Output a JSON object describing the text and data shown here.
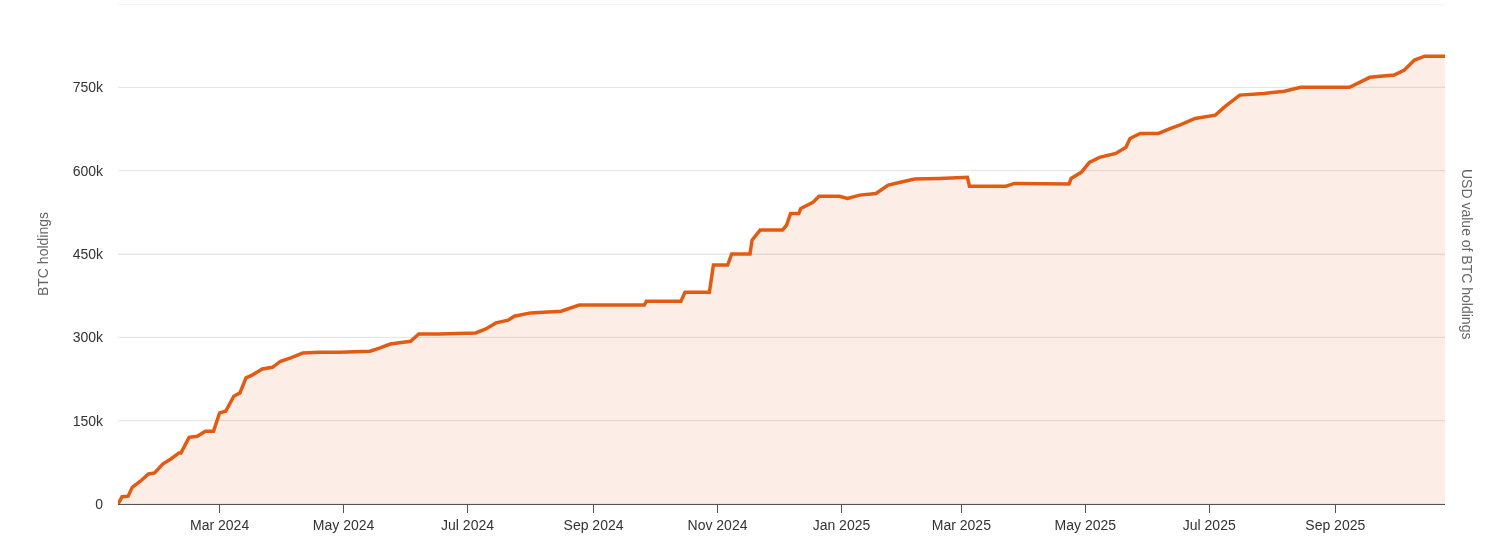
{
  "chart_data": {
    "type": "area",
    "ylabel": "BTC holdings",
    "y2label": "USD value of BTC holdings",
    "x": [
      "2024-01-11",
      "2024-01-13",
      "2024-01-16",
      "2024-01-18",
      "2024-01-22",
      "2024-01-26",
      "2024-01-29",
      "2024-02-02",
      "2024-02-06",
      "2024-02-10",
      "2024-02-11",
      "2024-02-15",
      "2024-02-19",
      "2024-02-23",
      "2024-02-27",
      "2024-03-01",
      "2024-03-04",
      "2024-03-08",
      "2024-03-11",
      "2024-03-14",
      "2024-03-17",
      "2024-03-22",
      "2024-03-27",
      "2024-03-31",
      "2024-04-05",
      "2024-04-11",
      "2024-04-19",
      "2024-04-29",
      "2024-05-14",
      "2024-05-19",
      "2024-05-24",
      "2024-06-03",
      "2024-06-07",
      "2024-06-17",
      "2024-07-05",
      "2024-07-10",
      "2024-07-15",
      "2024-07-21",
      "2024-07-24",
      "2024-08-01",
      "2024-08-16",
      "2024-08-25",
      "2024-09-14",
      "2024-09-26",
      "2024-09-27",
      "2024-10-14",
      "2024-10-16",
      "2024-10-28",
      "2024-10-30",
      "2024-11-06",
      "2024-11-08",
      "2024-11-17",
      "2024-11-18",
      "2024-11-22",
      "2024-12-03",
      "2024-12-05",
      "2024-12-07",
      "2024-12-11",
      "2024-12-12",
      "2024-12-18",
      "2024-12-21",
      "2024-12-31",
      "2025-01-04",
      "2025-01-10",
      "2025-01-18",
      "2025-01-24",
      "2025-01-30",
      "2025-02-06",
      "2025-02-18",
      "2025-03-04",
      "2025-03-05",
      "2025-03-23",
      "2025-03-27",
      "2025-04-23",
      "2025-04-24",
      "2025-04-29",
      "2025-05-03",
      "2025-05-08",
      "2025-05-16",
      "2025-05-21",
      "2025-05-23",
      "2025-05-28",
      "2025-06-06",
      "2025-06-12",
      "2025-06-17",
      "2025-06-24",
      "2025-07-04",
      "2025-07-09",
      "2025-07-16",
      "2025-07-28",
      "2025-08-07",
      "2025-08-15",
      "2025-09-08",
      "2025-09-13",
      "2025-09-18",
      "2025-09-30",
      "2025-10-05",
      "2025-10-10",
      "2025-10-15",
      "2025-10-25"
    ],
    "series": [
      {
        "color": "#e35b12",
        "values": [
          0,
          13000,
          14000,
          30000,
          41000,
          54000,
          56000,
          72000,
          81000,
          92000,
          92000,
          120000,
          122000,
          131000,
          131000,
          164000,
          167000,
          194000,
          200000,
          227000,
          232000,
          243000,
          246000,
          257000,
          263000,
          272000,
          273000,
          273000,
          275000,
          281000,
          288000,
          293000,
          306000,
          306000,
          308000,
          315000,
          326000,
          331000,
          338000,
          344000,
          347000,
          358000,
          358000,
          358000,
          365000,
          365000,
          381000,
          381000,
          430000,
          430000,
          450000,
          450000,
          475000,
          493000,
          493000,
          502000,
          523000,
          523000,
          532000,
          543000,
          554000,
          554000,
          550000,
          556000,
          559000,
          574000,
          579000,
          585000,
          586000,
          588000,
          572000,
          572000,
          577000,
          576000,
          586000,
          597000,
          615000,
          624000,
          631000,
          642000,
          658000,
          667000,
          667000,
          676000,
          683000,
          694000,
          700000,
          716000,
          736000,
          739000,
          743000,
          750000,
          750000,
          759000,
          768000,
          772000,
          781000,
          799000,
          806000,
          806000
        ]
      }
    ],
    "xlim": [
      "2024-01-11",
      "2025-10-25"
    ],
    "xticks": [
      {
        "value": "2024-03-01",
        "label": "Mar 2024"
      },
      {
        "value": "2024-05-01",
        "label": "May 2024"
      },
      {
        "value": "2024-07-01",
        "label": "Jul 2024"
      },
      {
        "value": "2024-09-01",
        "label": "Sep 2024"
      },
      {
        "value": "2024-11-01",
        "label": "Nov 2024"
      },
      {
        "value": "2025-01-01",
        "label": "Jan 2025"
      },
      {
        "value": "2025-03-01",
        "label": "Mar 2025"
      },
      {
        "value": "2025-05-01",
        "label": "May 2025"
      },
      {
        "value": "2025-07-01",
        "label": "Jul 2025"
      },
      {
        "value": "2025-09-01",
        "label": "Sep 2025"
      }
    ],
    "ylim": [
      0,
      900000
    ],
    "yticks": [
      0,
      {
        "value": 150000,
        "label": "150k"
      },
      {
        "value": 300000,
        "label": "300k"
      },
      {
        "value": 450000,
        "label": "450k"
      },
      {
        "value": 600000,
        "label": "600k"
      },
      {
        "value": 750000,
        "label": "750k"
      },
      {
        "value": 900000,
        "label": null
      }
    ],
    "grid": "y",
    "marker": "none",
    "line_style": "solid"
  }
}
